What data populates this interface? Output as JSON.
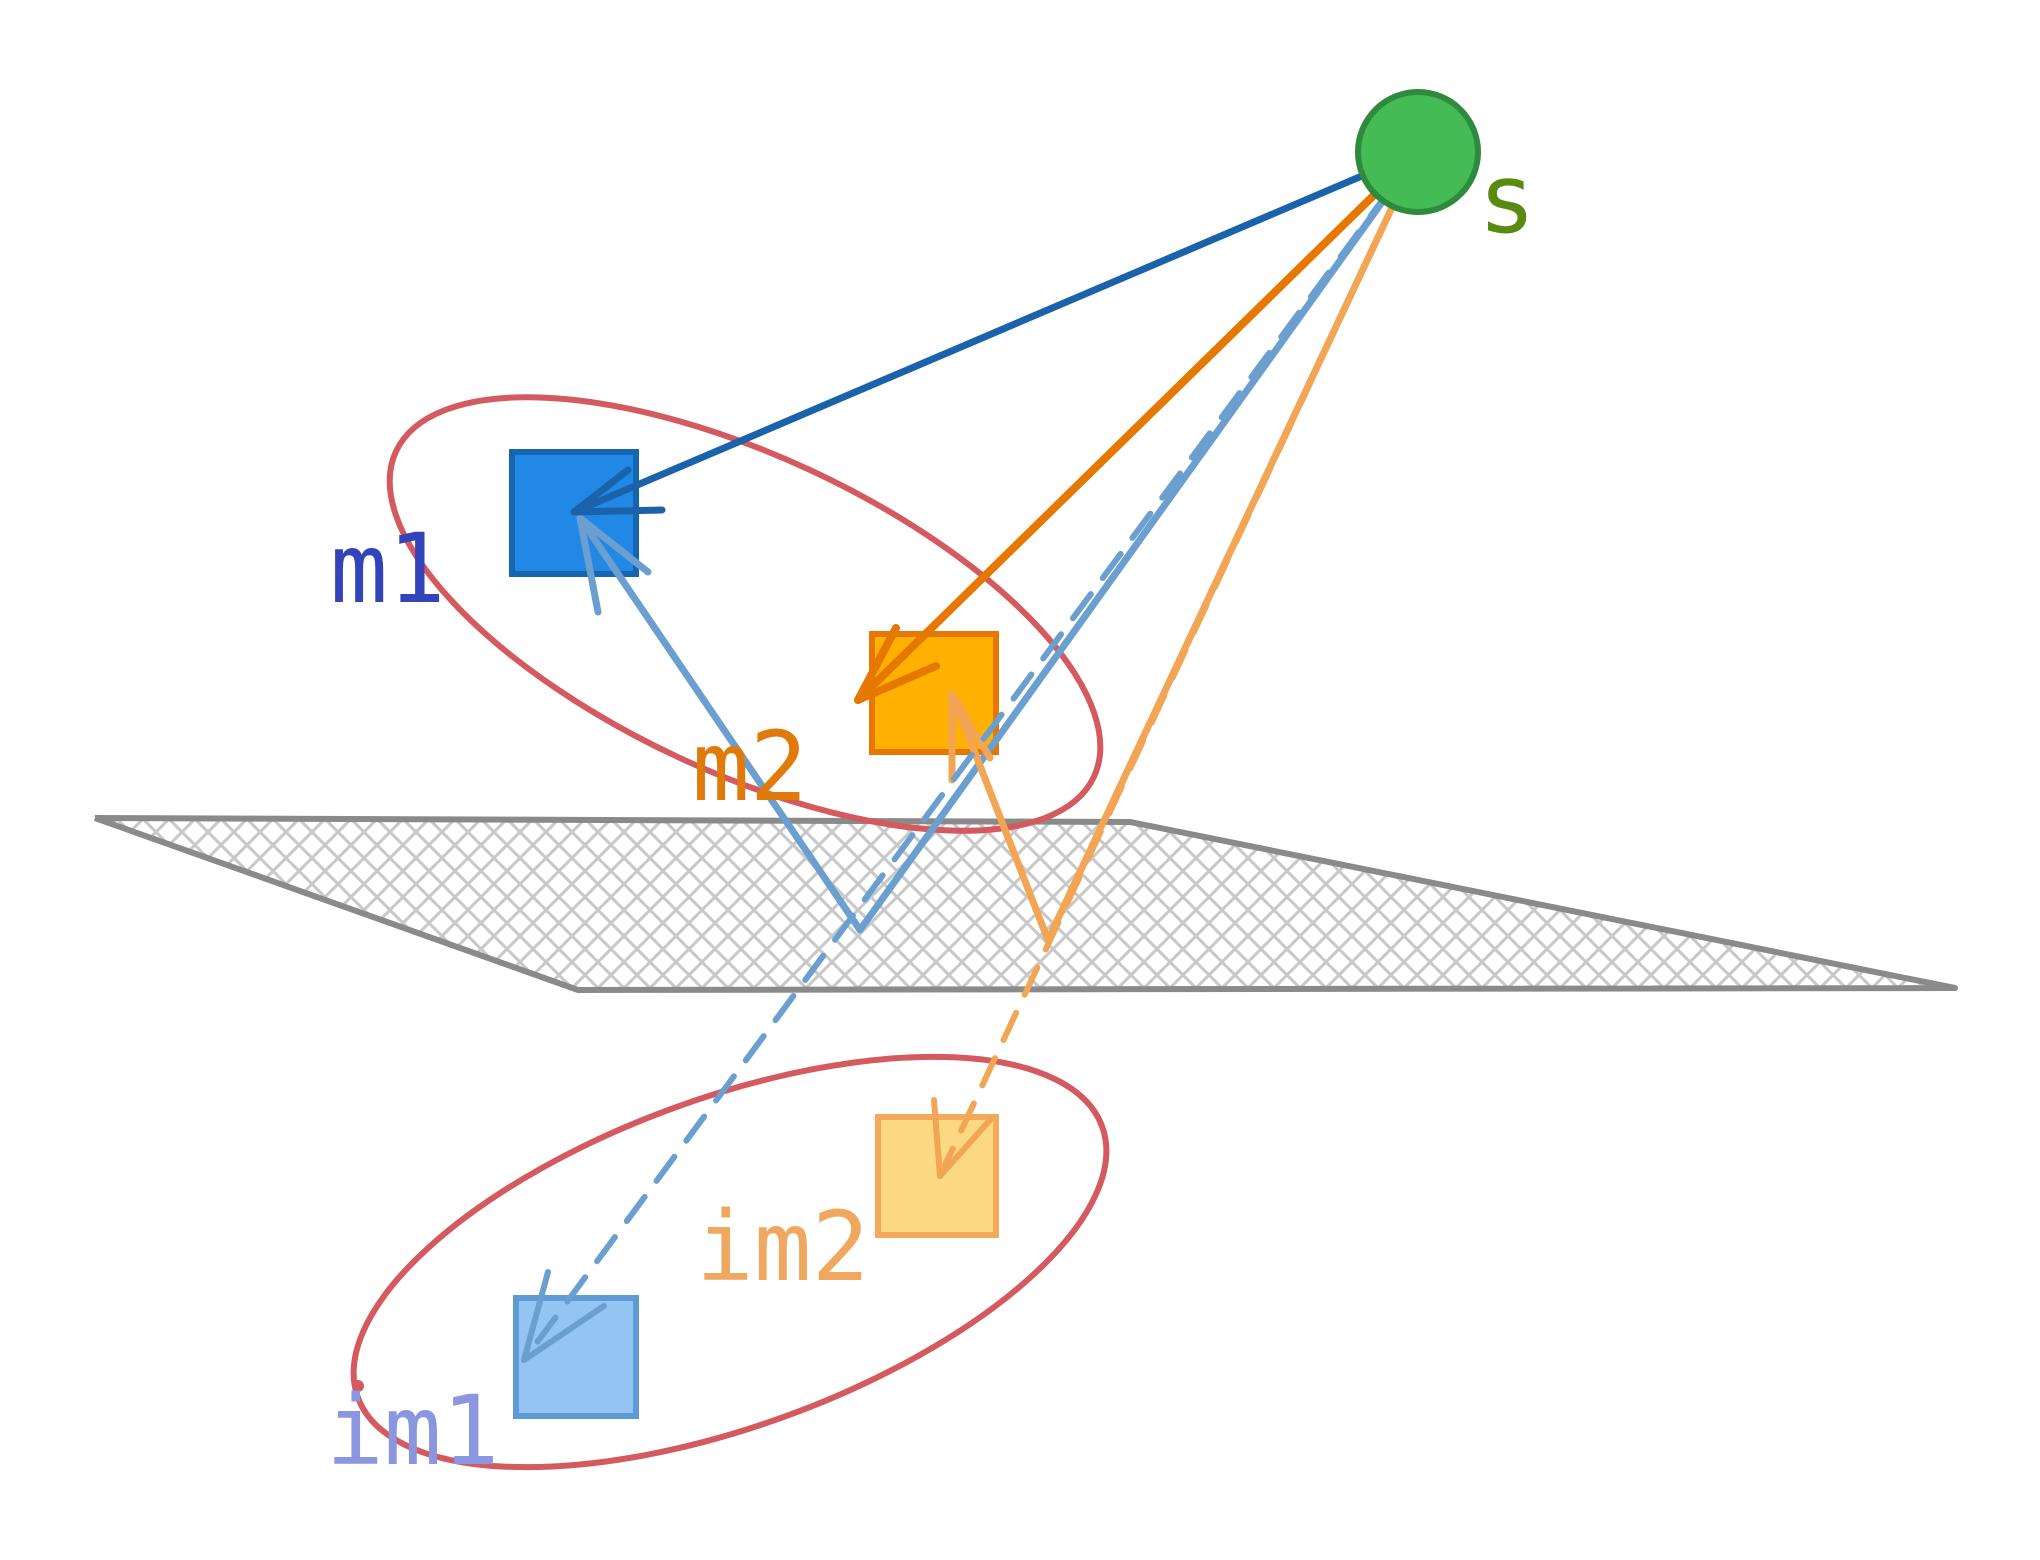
{
  "labels": {
    "source": "s",
    "mic1": "m1",
    "mic2": "m2",
    "image1": "im1",
    "image2": "im2"
  },
  "colors": {
    "source_fill": "#44bb55",
    "source_stroke": "#2e8b3e",
    "source_label": "#5a8a10",
    "mic1_fill": "#2288e6",
    "mic1_stroke": "#1565b0",
    "mic1_label": "#3344bb",
    "mic2_fill": "#ffb000",
    "mic2_stroke": "#e67700",
    "mic2_label": "#e07a0a",
    "image1_fill": "#94c4f2",
    "image1_stroke": "#5e9ad6",
    "image1_label": "#8a96e0",
    "image2_fill": "#fcd882",
    "image2_stroke": "#f4a85a",
    "image2_label": "#f0a860",
    "group_ellipse": "#d45a60",
    "wall_stroke": "#8a8a8a",
    "wall_hatch": "#c8c8c8",
    "direct_ray_1": "#1a62aa",
    "direct_ray_2": "#e67700",
    "reflected_ray_1": "#6a9fcf",
    "reflected_ray_2": "#f2a655"
  }
}
